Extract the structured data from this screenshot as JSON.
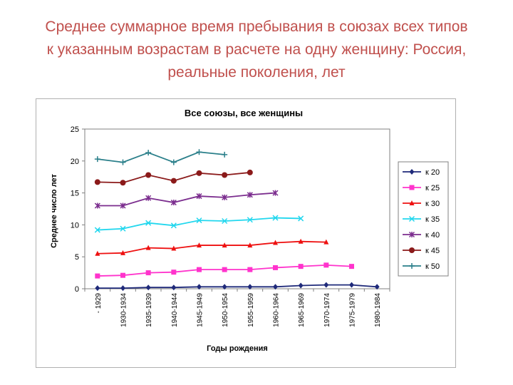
{
  "title_lines": [
    "Среднее суммарное время пребывания в союзах всех типов",
    "к указанным возрастам в расчете на одну женщину: Россия,",
    "реальные поколения, лет"
  ],
  "chart_data": {
    "type": "line",
    "title": "Все союзы, все женщины",
    "xlabel": "Годы рождения",
    "ylabel": "Среднее число лет",
    "ylim": [
      0,
      25
    ],
    "yticks": [
      0,
      5,
      10,
      15,
      20,
      25
    ],
    "grid": false,
    "legend_position": "right",
    "categories": [
      "- 1929",
      "1930-1934",
      "1935-1939",
      "1940-1944",
      "1945-1949",
      "1950-1954",
      "1955-1959",
      "1960-1964",
      "1965-1969",
      "1970-1974",
      "1975-1979",
      "1980-1984"
    ],
    "series": [
      {
        "name": "к 20",
        "color": "#1f2a7a",
        "marker": "diamond",
        "values": [
          0.1,
          0.1,
          0.2,
          0.2,
          0.3,
          0.3,
          0.3,
          0.3,
          0.5,
          0.6,
          0.6,
          0.3
        ]
      },
      {
        "name": "к 25",
        "color": "#ff33cc",
        "marker": "square",
        "values": [
          2.0,
          2.1,
          2.5,
          2.6,
          3.0,
          3.0,
          3.0,
          3.3,
          3.5,
          3.7,
          3.5,
          null
        ]
      },
      {
        "name": "к 30",
        "color": "#ee1111",
        "marker": "triangle",
        "values": [
          5.5,
          5.6,
          6.4,
          6.3,
          6.8,
          6.8,
          6.8,
          7.2,
          7.4,
          7.3,
          null,
          null
        ]
      },
      {
        "name": "к 35",
        "color": "#22d7ee",
        "marker": "x",
        "values": [
          9.2,
          9.4,
          10.3,
          9.9,
          10.7,
          10.6,
          10.8,
          11.1,
          11.0,
          null,
          null,
          null
        ]
      },
      {
        "name": "к 40",
        "color": "#7b2d8e",
        "marker": "star",
        "values": [
          13.0,
          13.0,
          14.2,
          13.5,
          14.5,
          14.3,
          14.7,
          15.0,
          null,
          null,
          null,
          null
        ]
      },
      {
        "name": "к 45",
        "color": "#8b1a1a",
        "marker": "circle",
        "values": [
          16.7,
          16.6,
          17.8,
          16.9,
          18.1,
          17.8,
          18.2,
          null,
          null,
          null,
          null,
          null
        ]
      },
      {
        "name": "к 50",
        "color": "#2a7f8a",
        "marker": "plus",
        "values": [
          20.3,
          19.8,
          21.3,
          19.8,
          21.4,
          21.0,
          null,
          null,
          null,
          null,
          null,
          null
        ]
      }
    ]
  }
}
